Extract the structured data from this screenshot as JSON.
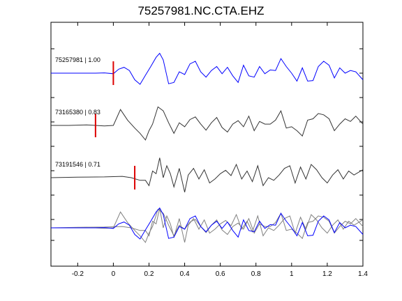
{
  "figure": {
    "title": "75257981.NC.CTA.EHZ"
  },
  "chart_data": {
    "type": "line",
    "title": "75257981.NC.CTA.EHZ",
    "xlabel": "",
    "ylabel": "",
    "xlim": [
      -0.35,
      1.4
    ],
    "x_ticks": [
      "-0.2",
      "0",
      "0.2",
      "0.4",
      "0.6",
      "0.8",
      "1",
      "1.2",
      "1.4"
    ],
    "x_tick_values": [
      -0.2,
      0,
      0.2,
      0.4,
      0.6,
      0.8,
      1.0,
      1.2,
      1.4
    ],
    "grid": false,
    "legend": "none",
    "traces": [
      {
        "label": "75257981 | 1.00",
        "color": "#0000ff",
        "pick_time": 0.0,
        "t": [
          -0.35,
          -0.2,
          -0.1,
          -0.05,
          0,
          0.03,
          0.06,
          0.09,
          0.12,
          0.15,
          0.18,
          0.21,
          0.24,
          0.26,
          0.28,
          0.31,
          0.34,
          0.37,
          0.4,
          0.43,
          0.46,
          0.49,
          0.52,
          0.55,
          0.58,
          0.61,
          0.64,
          0.67,
          0.7,
          0.73,
          0.76,
          0.79,
          0.82,
          0.85,
          0.88,
          0.91,
          0.94,
          0.97,
          1.0,
          1.03,
          1.06,
          1.09,
          1.12,
          1.15,
          1.18,
          1.21,
          1.24,
          1.27,
          1.3,
          1.33,
          1.36,
          1.4
        ],
        "amp": [
          0.0,
          0.0,
          0.0,
          0.01,
          -0.02,
          0.15,
          0.22,
          0.1,
          -0.25,
          -0.42,
          -0.08,
          0.25,
          0.6,
          0.75,
          0.5,
          -0.4,
          -0.35,
          0.05,
          -0.05,
          0.35,
          0.45,
          0.05,
          -0.15,
          0.1,
          0.25,
          -0.02,
          0.22,
          -0.1,
          -0.35,
          0.3,
          -0.1,
          -0.15,
          0.25,
          -0.02,
          0.12,
          0.1,
          0.55,
          0.25,
          0.0,
          -0.3,
          0.2,
          -0.3,
          -0.28,
          0.25,
          0.45,
          0.3,
          -0.18,
          0.2,
          0.0,
          0.1,
          0.05,
          -0.25
        ]
      },
      {
        "label": "73165380 | 0.83",
        "color": "#333333",
        "pick_time": -0.1,
        "t": [
          -0.35,
          -0.25,
          -0.15,
          -0.1,
          -0.05,
          0,
          0.04,
          0.08,
          0.12,
          0.15,
          0.18,
          0.2,
          0.22,
          0.25,
          0.28,
          0.31,
          0.34,
          0.37,
          0.4,
          0.43,
          0.46,
          0.49,
          0.52,
          0.55,
          0.58,
          0.61,
          0.64,
          0.67,
          0.7,
          0.73,
          0.76,
          0.79,
          0.82,
          0.85,
          0.88,
          0.91,
          0.94,
          0.97,
          1.0,
          1.03,
          1.06,
          1.09,
          1.12,
          1.15,
          1.18,
          1.21,
          1.24,
          1.27,
          1.3,
          1.33,
          1.36,
          1.4
        ],
        "amp": [
          0.0,
          0.0,
          0.02,
          0.0,
          -0.02,
          0.0,
          0.6,
          0.2,
          -0.1,
          -0.3,
          -0.55,
          -0.2,
          0.05,
          0.7,
          0.55,
          0.1,
          -0.3,
          0.1,
          -0.05,
          0.22,
          0.32,
          0.05,
          -0.18,
          0.1,
          0.3,
          -0.08,
          -0.25,
          0.05,
          0.18,
          -0.05,
          0.35,
          -0.2,
          0.15,
          0.05,
          0.05,
          0.2,
          0.55,
          -0.1,
          -0.05,
          -0.2,
          -0.4,
          0.2,
          0.25,
          0.45,
          0.4,
          0.25,
          -0.2,
          0.05,
          0.25,
          0.15,
          0.35,
          0.05
        ]
      },
      {
        "label": "73191546 | 0.71",
        "color": "#333333",
        "pick_time": 0.12,
        "t": [
          -0.35,
          -0.2,
          -0.05,
          0.05,
          0.1,
          0.15,
          0.18,
          0.2,
          0.22,
          0.24,
          0.26,
          0.28,
          0.3,
          0.32,
          0.34,
          0.37,
          0.4,
          0.42,
          0.45,
          0.48,
          0.51,
          0.54,
          0.57,
          0.6,
          0.63,
          0.66,
          0.69,
          0.72,
          0.75,
          0.78,
          0.81,
          0.84,
          0.87,
          0.9,
          0.93,
          0.96,
          0.99,
          1.02,
          1.05,
          1.08,
          1.11,
          1.14,
          1.17,
          1.2,
          1.23,
          1.26,
          1.29,
          1.32,
          1.35,
          1.4
        ],
        "amp": [
          0.0,
          0.02,
          0.03,
          0.05,
          0.0,
          -0.1,
          -0.1,
          -0.3,
          0.25,
          0.15,
          0.75,
          0.0,
          0.45,
          0.15,
          -0.35,
          0.35,
          -0.55,
          0.1,
          0.35,
          -0.05,
          0.3,
          -0.2,
          -0.05,
          0.15,
          0.28,
          0.08,
          0.5,
          -0.05,
          0.25,
          -0.15,
          0.45,
          -0.3,
          0.0,
          -0.1,
          0.1,
          0.35,
          0.45,
          -0.2,
          0.4,
          -0.05,
          0.5,
          0.3,
          0.0,
          -0.2,
          0.1,
          0.3,
          -0.05,
          0.25,
          0.1,
          0.3
        ]
      }
    ]
  }
}
